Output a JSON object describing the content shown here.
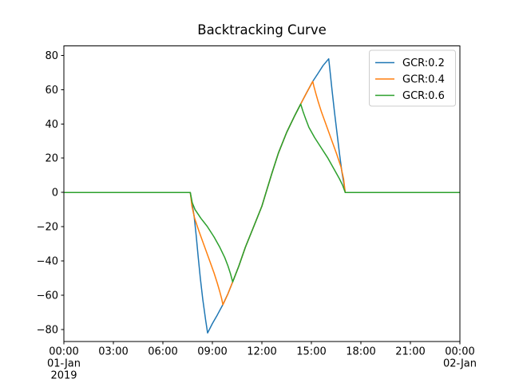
{
  "figure": {
    "background": "#ffffff"
  },
  "chart_data": {
    "type": "line",
    "title": "Backtracking Curve",
    "xlabel": "",
    "ylabel": "",
    "grid": false,
    "xlim": [
      0,
      24
    ],
    "ylim": [
      -87,
      85.5
    ],
    "x_axis_unit": "time of day",
    "x_ticks": [
      {
        "value": 0,
        "label": "00:00",
        "sublabels": [
          "01-Jan",
          "2019"
        ]
      },
      {
        "value": 3,
        "label": "03:00",
        "sublabels": []
      },
      {
        "value": 6,
        "label": "06:00",
        "sublabels": []
      },
      {
        "value": 9,
        "label": "09:00",
        "sublabels": []
      },
      {
        "value": 12,
        "label": "12:00",
        "sublabels": []
      },
      {
        "value": 15,
        "label": "15:00",
        "sublabels": []
      },
      {
        "value": 18,
        "label": "18:00",
        "sublabels": []
      },
      {
        "value": 21,
        "label": "21:00",
        "sublabels": []
      },
      {
        "value": 24,
        "label": "00:00",
        "sublabels": [
          "02-Jan"
        ]
      }
    ],
    "y_ticks": [
      -80,
      -60,
      -40,
      -20,
      0,
      20,
      40,
      60,
      80
    ],
    "legend": {
      "position": "upper right",
      "entries": [
        "GCR:0.2",
        "GCR:0.4",
        "GCR:0.6"
      ]
    },
    "axis_color": "#000000",
    "series": [
      {
        "name": "GCR:0.2",
        "color": "#1f77b4",
        "points": [
          [
            0,
            0
          ],
          [
            7.66,
            0
          ],
          [
            7.78,
            -7
          ],
          [
            7.9,
            -14.5
          ],
          [
            8.02,
            -25
          ],
          [
            8.14,
            -37.5
          ],
          [
            8.27,
            -50
          ],
          [
            8.42,
            -62.5
          ],
          [
            8.6,
            -75
          ],
          [
            8.71,
            -82
          ],
          [
            9.0,
            -76.5
          ],
          [
            9.3,
            -71.5
          ],
          [
            9.63,
            -65.6
          ],
          [
            9.95,
            -59
          ],
          [
            10.23,
            -52.2
          ],
          [
            10.6,
            -43
          ],
          [
            11.0,
            -32
          ],
          [
            11.5,
            -20
          ],
          [
            12.0,
            -8
          ],
          [
            12.25,
            0
          ],
          [
            12.6,
            11
          ],
          [
            13.0,
            23
          ],
          [
            13.5,
            35
          ],
          [
            14.0,
            45
          ],
          [
            14.35,
            51.6
          ],
          [
            14.7,
            58
          ],
          [
            15.08,
            64.8
          ],
          [
            15.4,
            69.5
          ],
          [
            15.7,
            74
          ],
          [
            16.05,
            78
          ],
          [
            16.12,
            72
          ],
          [
            16.25,
            60
          ],
          [
            16.4,
            47
          ],
          [
            16.55,
            35
          ],
          [
            16.7,
            23
          ],
          [
            16.85,
            12
          ],
          [
            16.95,
            6
          ],
          [
            17.05,
            0
          ],
          [
            24,
            0
          ]
        ]
      },
      {
        "name": "GCR:0.4",
        "color": "#ff7f0e",
        "points": [
          [
            0,
            0
          ],
          [
            7.66,
            0
          ],
          [
            7.76,
            -8
          ],
          [
            7.92,
            -15
          ],
          [
            8.2,
            -23
          ],
          [
            8.5,
            -31
          ],
          [
            8.8,
            -39
          ],
          [
            9.1,
            -47
          ],
          [
            9.3,
            -53
          ],
          [
            9.45,
            -58
          ],
          [
            9.56,
            -62
          ],
          [
            9.64,
            -65.6
          ],
          [
            9.95,
            -59
          ],
          [
            10.23,
            -52.2
          ],
          [
            10.6,
            -43
          ],
          [
            11.0,
            -32
          ],
          [
            11.5,
            -20
          ],
          [
            12.0,
            -8
          ],
          [
            12.25,
            0
          ],
          [
            12.6,
            11
          ],
          [
            13.0,
            23
          ],
          [
            13.5,
            35
          ],
          [
            14.0,
            45
          ],
          [
            14.35,
            51.6
          ],
          [
            14.7,
            58
          ],
          [
            15.08,
            64.8
          ],
          [
            15.15,
            62
          ],
          [
            15.26,
            58
          ],
          [
            15.41,
            53
          ],
          [
            15.61,
            47
          ],
          [
            15.91,
            39
          ],
          [
            16.21,
            31
          ],
          [
            16.51,
            23
          ],
          [
            16.79,
            15
          ],
          [
            16.95,
            8
          ],
          [
            17.05,
            0
          ],
          [
            24,
            0
          ]
        ]
      },
      {
        "name": "GCR:0.6",
        "color": "#2ca02c",
        "points": [
          [
            0,
            0
          ],
          [
            7.66,
            0
          ],
          [
            7.78,
            -6
          ],
          [
            7.95,
            -10
          ],
          [
            8.3,
            -15
          ],
          [
            8.7,
            -20
          ],
          [
            9.1,
            -26
          ],
          [
            9.45,
            -32
          ],
          [
            9.75,
            -38
          ],
          [
            9.95,
            -43
          ],
          [
            10.1,
            -47.5
          ],
          [
            10.23,
            -52.2
          ],
          [
            10.6,
            -43
          ],
          [
            11.0,
            -32
          ],
          [
            11.5,
            -20
          ],
          [
            12.0,
            -8
          ],
          [
            12.25,
            0
          ],
          [
            12.6,
            11
          ],
          [
            13.0,
            23
          ],
          [
            13.5,
            35
          ],
          [
            14.0,
            45
          ],
          [
            14.35,
            51.6
          ],
          [
            14.5,
            47
          ],
          [
            14.65,
            43
          ],
          [
            14.85,
            38
          ],
          [
            15.2,
            32
          ],
          [
            15.6,
            26
          ],
          [
            16.0,
            20
          ],
          [
            16.35,
            14
          ],
          [
            16.7,
            8
          ],
          [
            16.9,
            4
          ],
          [
            17.05,
            0
          ],
          [
            24,
            0
          ]
        ]
      }
    ]
  }
}
